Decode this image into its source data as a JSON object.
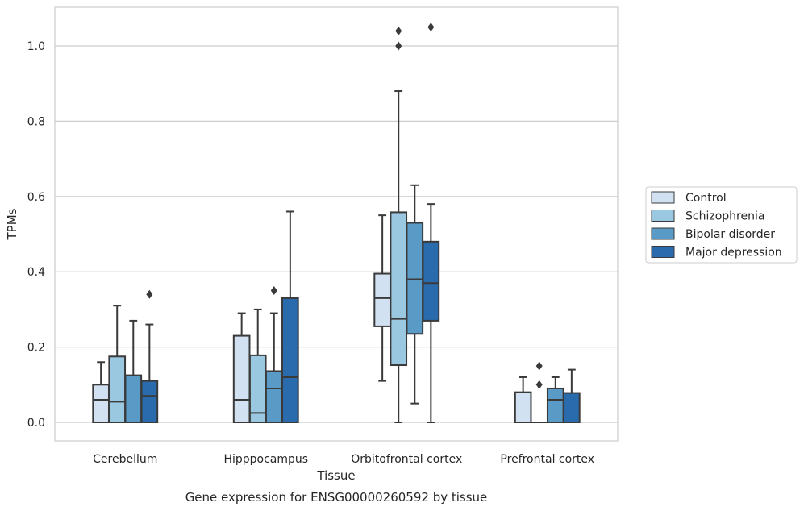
{
  "chart_data": {
    "type": "box",
    "xlabel": "Tissue",
    "ylabel": "TPMs",
    "caption": "Gene expression for ENSG00000260592 by tissue",
    "ylim": [
      -0.05,
      1.1
    ],
    "yticks": [
      "0.0",
      "0.2",
      "0.4",
      "0.6",
      "0.8",
      "1.0"
    ],
    "ytick_values": [
      0.0,
      0.2,
      0.4,
      0.6,
      0.8,
      1.0
    ],
    "grid": "y",
    "legend_position": "right",
    "categories": [
      "Cerebellum",
      "Hipppocampus",
      "Orbitofrontal cortex",
      "Prefrontal cortex"
    ],
    "series": [
      {
        "name": "Control",
        "color": "#d1e1f1",
        "boxes": [
          {
            "whislo": 0.0,
            "q1": 0.0,
            "med": 0.06,
            "q3": 0.1,
            "whishi": 0.16,
            "fliers": []
          },
          {
            "whislo": 0.0,
            "q1": 0.0,
            "med": 0.06,
            "q3": 0.23,
            "whishi": 0.29,
            "fliers": []
          },
          {
            "whislo": 0.11,
            "q1": 0.255,
            "med": 0.33,
            "q3": 0.395,
            "whishi": 0.55,
            "fliers": []
          },
          {
            "whislo": 0.0,
            "q1": 0.0,
            "med": 0.0,
            "q3": 0.08,
            "whishi": 0.12,
            "fliers": []
          }
        ]
      },
      {
        "name": "Schizophrenia",
        "color": "#9ac8e0",
        "boxes": [
          {
            "whislo": 0.0,
            "q1": 0.0,
            "med": 0.055,
            "q3": 0.175,
            "whishi": 0.31,
            "fliers": []
          },
          {
            "whislo": 0.0,
            "q1": 0.0,
            "med": 0.025,
            "q3": 0.178,
            "whishi": 0.3,
            "fliers": []
          },
          {
            "whislo": 0.0,
            "q1": 0.152,
            "med": 0.275,
            "q3": 0.558,
            "whishi": 0.88,
            "fliers": [
              1.0,
              1.04
            ]
          },
          {
            "whislo": 0.0,
            "q1": 0.0,
            "med": 0.0,
            "q3": 0.0,
            "whishi": 0.0,
            "fliers": [
              0.1,
              0.15
            ]
          }
        ]
      },
      {
        "name": "Bipolar disorder",
        "color": "#5a9ac6",
        "boxes": [
          {
            "whislo": 0.0,
            "q1": 0.0,
            "med": 0.0,
            "q3": 0.125,
            "whishi": 0.27,
            "fliers": []
          },
          {
            "whislo": 0.0,
            "q1": 0.0,
            "med": 0.09,
            "q3": 0.136,
            "whishi": 0.29,
            "fliers": [
              0.35
            ]
          },
          {
            "whislo": 0.05,
            "q1": 0.235,
            "med": 0.38,
            "q3": 0.53,
            "whishi": 0.63,
            "fliers": []
          },
          {
            "whislo": 0.0,
            "q1": 0.0,
            "med": 0.06,
            "q3": 0.09,
            "whishi": 0.12,
            "fliers": []
          }
        ]
      },
      {
        "name": "Major depression",
        "color": "#2a6bad",
        "boxes": [
          {
            "whislo": 0.0,
            "q1": 0.0,
            "med": 0.07,
            "q3": 0.11,
            "whishi": 0.26,
            "fliers": [
              0.34
            ]
          },
          {
            "whislo": 0.0,
            "q1": 0.0,
            "med": 0.12,
            "q3": 0.33,
            "whishi": 0.56,
            "fliers": []
          },
          {
            "whislo": 0.0,
            "q1": 0.27,
            "med": 0.37,
            "q3": 0.48,
            "whishi": 0.58,
            "fliers": [
              1.05
            ]
          },
          {
            "whislo": 0.0,
            "q1": 0.0,
            "med": 0.0,
            "q3": 0.078,
            "whishi": 0.14,
            "fliers": []
          }
        ]
      }
    ]
  }
}
